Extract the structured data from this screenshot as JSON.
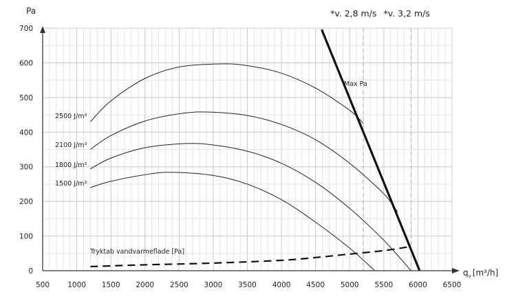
{
  "chart_data": {
    "type": "line",
    "title": "",
    "xlabel": "q",
    "xlabel_sub": "v",
    "xlabel_unit": "[m³/h]",
    "ylabel": "Pa",
    "xlim": [
      500,
      6500
    ],
    "ylim": [
      0,
      700
    ],
    "xticks": [
      500,
      1000,
      1500,
      2000,
      2500,
      3000,
      3500,
      4000,
      4500,
      5000,
      5500,
      6000,
      6500
    ],
    "yticks": [
      0,
      100,
      200,
      300,
      400,
      500,
      600,
      700
    ],
    "grid": true,
    "series": [
      {
        "name": "2500 J/m³",
        "label": "2500 J/m³",
        "points": [
          [
            1200,
            430
          ],
          [
            1500,
            490
          ],
          [
            2000,
            555
          ],
          [
            2500,
            588
          ],
          [
            3100,
            597
          ],
          [
            3500,
            592
          ],
          [
            4000,
            570
          ],
          [
            4500,
            527
          ],
          [
            5000,
            463
          ],
          [
            5200,
            425
          ]
        ]
      },
      {
        "name": "2100 J/m³",
        "label": "2100 J/m³",
        "points": [
          [
            1200,
            350
          ],
          [
            1500,
            390
          ],
          [
            2000,
            432
          ],
          [
            2500,
            453
          ],
          [
            2900,
            458
          ],
          [
            3500,
            448
          ],
          [
            4000,
            422
          ],
          [
            4500,
            378
          ],
          [
            5000,
            310
          ],
          [
            5500,
            222
          ],
          [
            5700,
            170
          ]
        ]
      },
      {
        "name": "1800 J/m³",
        "label": "1800 J/m³",
        "points": [
          [
            1200,
            294
          ],
          [
            1500,
            325
          ],
          [
            2000,
            355
          ],
          [
            2600,
            367
          ],
          [
            3000,
            363
          ],
          [
            3500,
            345
          ],
          [
            4000,
            310
          ],
          [
            4500,
            255
          ],
          [
            5000,
            180
          ],
          [
            5500,
            88
          ],
          [
            5900,
            0
          ]
        ]
      },
      {
        "name": "1500 J/m³",
        "label": "1500 J/m³",
        "points": [
          [
            1200,
            240
          ],
          [
            1500,
            258
          ],
          [
            2000,
            277
          ],
          [
            2375,
            284
          ],
          [
            3000,
            275
          ],
          [
            3500,
            250
          ],
          [
            4000,
            205
          ],
          [
            4500,
            140
          ],
          [
            5000,
            65
          ],
          [
            5370,
            0
          ]
        ]
      },
      {
        "name": "Max Pa",
        "label": "Max Pa",
        "points": [
          [
            4590,
            696
          ],
          [
            6025,
            0
          ]
        ],
        "style": "bold"
      },
      {
        "name": "Tryktab vandvarmeflade [Pa]",
        "label": "Tryktab vandvarmeflade [Pa]",
        "points": [
          [
            1200,
            12
          ],
          [
            2000,
            17
          ],
          [
            3000,
            22
          ],
          [
            4000,
            30
          ],
          [
            4500,
            38
          ],
          [
            5000,
            48
          ],
          [
            5500,
            58
          ],
          [
            5900,
            70
          ]
        ],
        "style": "dashed"
      }
    ],
    "reference_lines": [
      {
        "x": 5200,
        "label": "*v. 2,8 m/s"
      },
      {
        "x": 5900,
        "label": "*v. 3,2 m/s"
      }
    ]
  }
}
